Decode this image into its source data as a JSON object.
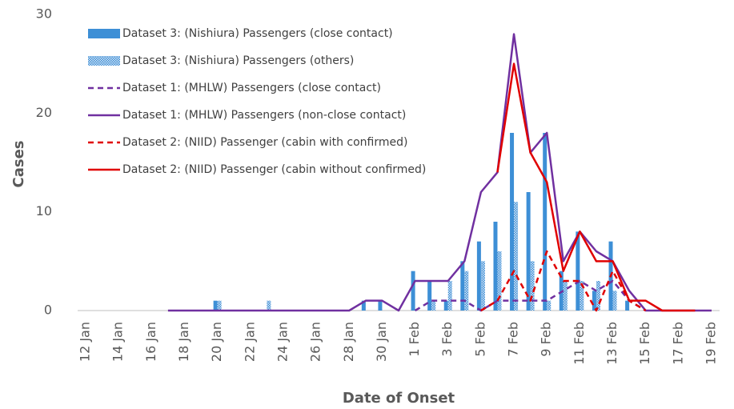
{
  "chart_data": {
    "type": "bar",
    "x_label": "Date of Onset",
    "y_label": "Cases",
    "categories": [
      "12 Jan",
      null,
      "14 Jan",
      null,
      "16 Jan",
      null,
      "18 Jan",
      null,
      "20 Jan",
      null,
      "22 Jan",
      null,
      "24 Jan",
      null,
      "26 Jan",
      null,
      "28 Jan",
      null,
      "30 Jan",
      null,
      "1 Feb",
      null,
      "3 Feb",
      null,
      "5 Feb",
      null,
      "7 Feb",
      null,
      "9 Feb",
      null,
      "11 Feb",
      null,
      "13 Feb",
      null,
      "15 Feb",
      null,
      "17 Feb",
      null,
      "19 Feb"
    ],
    "ylim": [
      0,
      30
    ],
    "yticks": [
      0,
      10,
      20,
      30
    ],
    "grid": false,
    "legend": "upper left",
    "series": [
      {
        "name": "Dataset 3: (Nishiura) Passengers (close contact)",
        "type": "bar",
        "color": "#3d8fd6",
        "values": [
          0,
          0,
          0,
          0,
          0,
          0,
          0,
          0,
          1,
          0,
          0,
          0,
          0,
          0,
          0,
          0,
          0,
          1,
          1,
          0,
          4,
          3,
          1,
          5,
          7,
          9,
          18,
          12,
          18,
          4,
          8,
          2,
          7,
          1,
          0,
          0,
          0,
          0,
          0
        ]
      },
      {
        "name": "Dataset 3: (Nishiura) Passengers (others)",
        "type": "bar",
        "color": "#3d8fd6",
        "pattern": "hatched",
        "values": [
          0,
          0,
          0,
          0,
          0,
          0,
          0,
          0,
          1,
          0,
          0,
          1,
          0,
          0,
          0,
          0,
          0,
          0,
          0,
          0,
          0,
          1,
          3,
          4,
          5,
          6,
          11,
          5,
          1,
          3,
          3,
          3,
          2,
          0,
          0,
          0,
          0,
          0,
          0
        ]
      },
      {
        "name": "Dataset 1: (MHLW) Passengers (close contact)",
        "type": "line",
        "dashed": true,
        "color": "#7030a0",
        "values": [
          null,
          null,
          null,
          null,
          null,
          null,
          null,
          null,
          null,
          null,
          null,
          null,
          null,
          null,
          null,
          null,
          null,
          null,
          null,
          null,
          0,
          1,
          1,
          1,
          0,
          1,
          1,
          1,
          1,
          2,
          3,
          2,
          3,
          1,
          0,
          null,
          null,
          null,
          null
        ]
      },
      {
        "name": "Dataset 1: (MHLW) Passengers (non-close contact)",
        "type": "line",
        "dashed": false,
        "color": "#7030a0",
        "values": [
          null,
          null,
          null,
          null,
          null,
          0,
          0,
          0,
          0,
          0,
          0,
          0,
          0,
          0,
          0,
          0,
          0,
          1,
          1,
          0,
          3,
          3,
          3,
          5,
          12,
          14,
          28,
          16,
          18,
          5,
          8,
          6,
          5,
          2,
          0,
          0,
          0,
          0,
          0
        ]
      },
      {
        "name": "Dataset 2: (NIID) Passenger (cabin with confirmed)",
        "type": "line",
        "dashed": true,
        "color": "#e00000",
        "values": [
          null,
          null,
          null,
          null,
          null,
          null,
          null,
          null,
          null,
          null,
          null,
          null,
          null,
          null,
          null,
          null,
          null,
          null,
          null,
          null,
          null,
          null,
          null,
          null,
          0,
          1,
          4,
          1,
          6,
          3,
          3,
          0,
          4,
          1,
          0,
          null,
          null,
          null,
          null
        ]
      },
      {
        "name": "Dataset 2: (NIID) Passenger (cabin without confirmed)",
        "type": "line",
        "dashed": false,
        "color": "#e00000",
        "values": [
          null,
          null,
          null,
          null,
          null,
          null,
          null,
          null,
          null,
          null,
          null,
          null,
          null,
          null,
          null,
          null,
          null,
          null,
          null,
          null,
          null,
          null,
          null,
          null,
          null,
          14,
          25,
          16,
          13,
          4,
          8,
          5,
          5,
          1,
          1,
          0,
          0,
          0,
          null
        ]
      }
    ]
  }
}
